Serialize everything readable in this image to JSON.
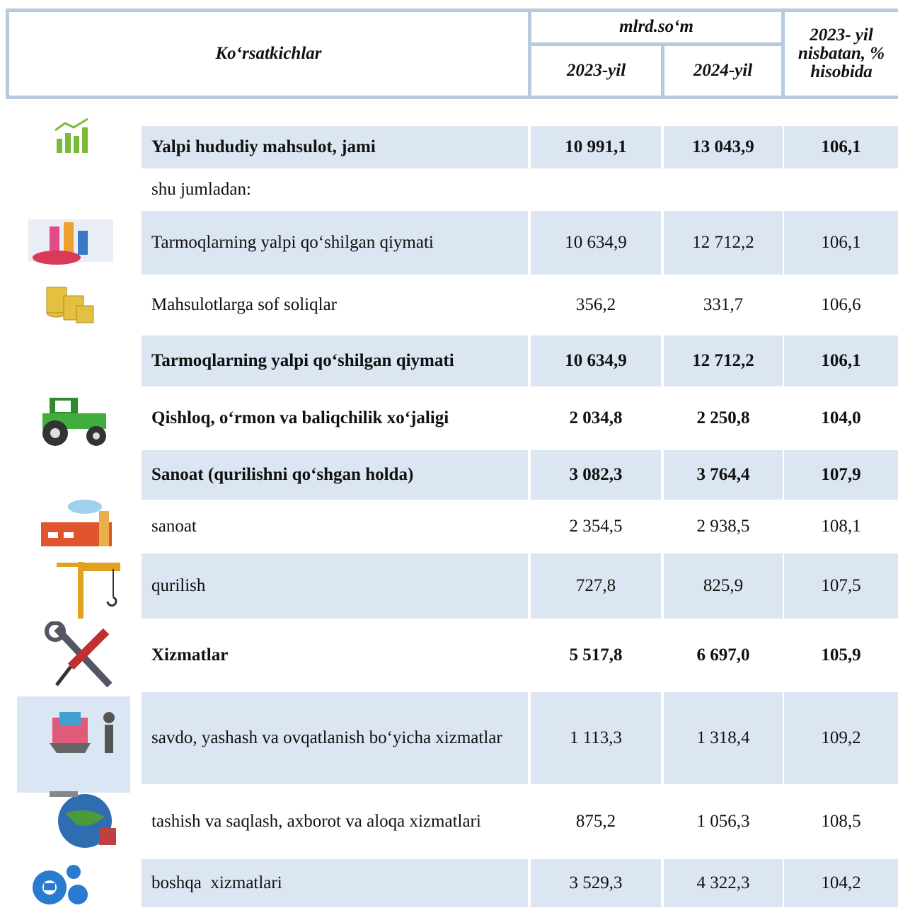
{
  "header": {
    "indicator": "Ko‘rsatkichlar",
    "unit": "mlrd.so‘m",
    "year1": "2023-yil",
    "year2": "2024-yil",
    "ratio": "2023- yil nisbatan, % hisobida"
  },
  "table": {
    "rows": [
      {
        "label": "Yalpi hududiy mahsulot, jami",
        "values": [
          "10 991,1",
          "13 043,9",
          "106,1"
        ]
      },
      {
        "label": "shu jumladan:"
      },
      {
        "label": "Tarmoqlarning yalpi qo‘shilgan qiymati",
        "values": [
          "10 634,9",
          "12 712,2",
          "106,1"
        ]
      },
      {
        "label": "Mahsulotlarga sof soliqlar",
        "values": [
          "356,2",
          "331,7",
          "106,6"
        ]
      },
      {
        "label": "Tarmoqlarning yalpi qo‘shilgan qiymati",
        "values": [
          "10 634,9",
          "12 712,2",
          "106,1"
        ]
      },
      {
        "label": "Qishloq, o‘rmon va baliqchilik xo‘jaligi",
        "values": [
          "2 034,8",
          "2 250,8",
          "104,0"
        ]
      },
      {
        "label": "Sanoat (qurilishni qo‘shgan holda)",
        "values": [
          "3 082,3",
          "3 764,4",
          "107,9"
        ]
      },
      {
        "label": "sanoat",
        "values": [
          "2 354,5",
          "2 938,5",
          "108,1"
        ]
      },
      {
        "label": "qurilish",
        "values": [
          "727,8",
          "825,9",
          "107,5"
        ]
      },
      {
        "label": "Xizmatlar",
        "values": [
          "5 517,8",
          "6 697,0",
          "105,9"
        ]
      },
      {
        "label": "savdo, yashash va ovqatlanish bo‘yicha xizmatlar",
        "values": [
          "1 113,3",
          "1 318,4",
          "109,2"
        ]
      },
      {
        "label": "tashish va saqlash, axborot va aloqa xizmatlari",
        "values": [
          "875,2",
          "1 056,3",
          "108,5"
        ]
      },
      {
        "label": "boshqa  xizmatlari",
        "values": [
          "3 529,3",
          "4 322,3",
          "104,2"
        ]
      }
    ]
  }
}
